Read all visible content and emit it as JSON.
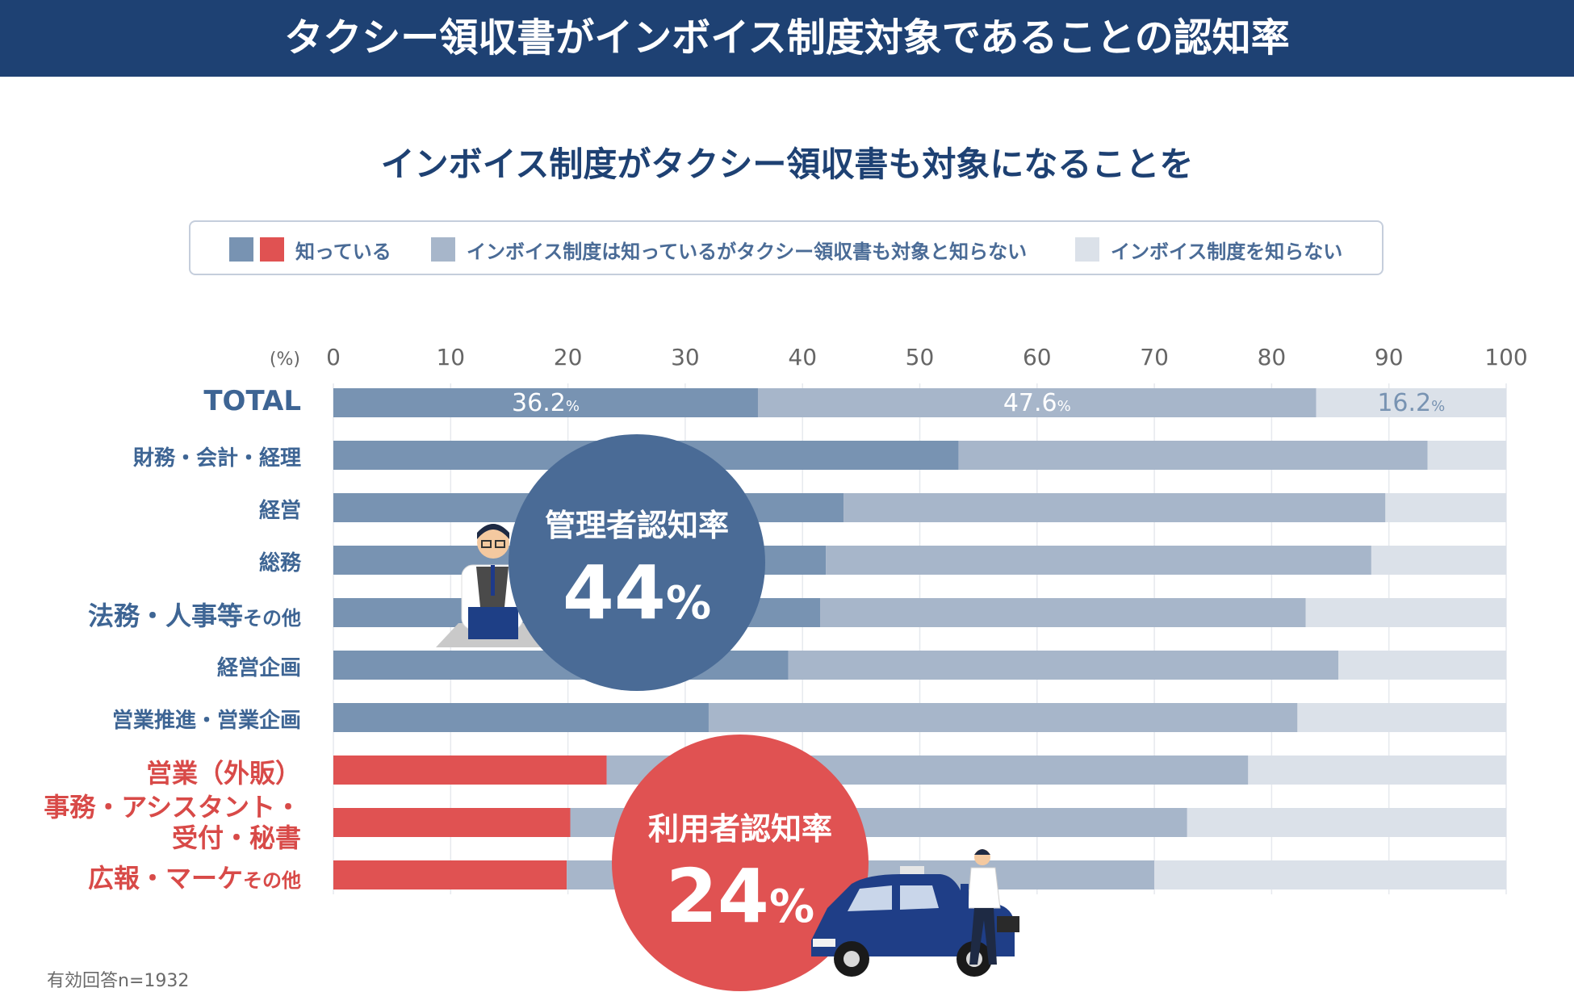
{
  "header": {
    "title": "タクシー領収書がインボイス制度対象であることの認知率"
  },
  "subtitle": "インボイス制度がタクシー領収書も対象になることを",
  "legend": {
    "known": "知っている",
    "partial": "インボイス制度は知っているがタクシー領収書も対象と知らない",
    "unknown": "インボイス制度を知らない"
  },
  "colors": {
    "header_bg": "#1e4173",
    "known_admin": "#7893b2",
    "known_user": "#e05252",
    "partial": "#a7b6ca",
    "unknown": "#dbe1e9",
    "admin_badge": "#4a6b96",
    "user_badge": "#e05252"
  },
  "badges": {
    "admin": {
      "label": "管理者認知率",
      "value": "44",
      "unit": "%"
    },
    "user": {
      "label": "利用者認知率",
      "value": "24",
      "unit": "%"
    }
  },
  "note": "有効回答n=1932",
  "chart_data": {
    "type": "bar",
    "orientation": "horizontal",
    "stacked": true,
    "unit_label": "(%)",
    "xlim": [
      0,
      100
    ],
    "xticks": [
      "0",
      "10",
      "20",
      "30",
      "40",
      "50",
      "60",
      "70",
      "80",
      "90",
      "100"
    ],
    "grid": true,
    "legend_position": "top",
    "categories": [
      {
        "label": "TOTAL",
        "group": "total"
      },
      {
        "label": "財務・会計・経理",
        "group": "admin"
      },
      {
        "label": "経営",
        "group": "admin"
      },
      {
        "label": "総務",
        "group": "admin"
      },
      {
        "label": "法務・人事等",
        "suffix": "その他",
        "group": "admin"
      },
      {
        "label": "経営企画",
        "group": "admin"
      },
      {
        "label": "営業推進・営業企画",
        "group": "admin"
      },
      {
        "label": "営業（外販）",
        "group": "user"
      },
      {
        "label": "事務・アシスタント・",
        "label2": "受付・秘書",
        "group": "user"
      },
      {
        "label": "広報・マーケ",
        "suffix": "その他",
        "group": "user"
      }
    ],
    "series": [
      {
        "name": "知っている",
        "values": [
          36.2,
          53.3,
          43.5,
          42.0,
          41.5,
          38.8,
          32.0,
          23.3,
          20.2,
          19.9
        ]
      },
      {
        "name": "インボイス制度は知っているがタクシー領収書も対象と知らない",
        "values": [
          47.6,
          40.0,
          46.2,
          46.5,
          41.4,
          46.9,
          50.2,
          54.7,
          52.6,
          50.1
        ]
      },
      {
        "name": "インボイス制度を知らない",
        "values": [
          16.2,
          6.7,
          10.3,
          11.5,
          17.1,
          14.3,
          17.8,
          22.0,
          27.2,
          30.0
        ]
      }
    ],
    "data_labels": {
      "total": [
        "36.2",
        "47.6",
        "16.2"
      ],
      "unit": "%"
    }
  }
}
